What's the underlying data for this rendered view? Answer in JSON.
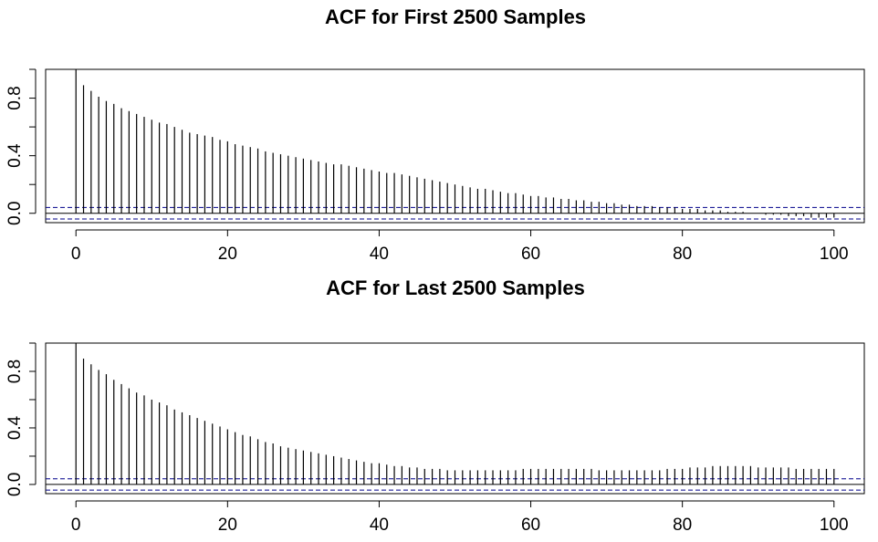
{
  "chart_data": [
    {
      "type": "bar",
      "title": "ACF for First 2500 Samples",
      "xlabel": "",
      "ylabel": "",
      "xlim": [
        -4,
        104
      ],
      "ylim": [
        -0.065,
        1.0
      ],
      "x_ticks": [
        0,
        20,
        40,
        60,
        80,
        100
      ],
      "y_ticks": [
        "0.0",
        "0.4",
        "0.8"
      ],
      "y_minor_ticks": [
        0.2,
        0.6,
        1.0
      ],
      "ci_bound": 0.04,
      "x": [
        0,
        1,
        2,
        3,
        4,
        5,
        6,
        7,
        8,
        9,
        10,
        11,
        12,
        13,
        14,
        15,
        16,
        17,
        18,
        19,
        20,
        21,
        22,
        23,
        24,
        25,
        26,
        27,
        28,
        29,
        30,
        31,
        32,
        33,
        34,
        35,
        36,
        37,
        38,
        39,
        40,
        41,
        42,
        43,
        44,
        45,
        46,
        47,
        48,
        49,
        50,
        51,
        52,
        53,
        54,
        55,
        56,
        57,
        58,
        59,
        60,
        61,
        62,
        63,
        64,
        65,
        66,
        67,
        68,
        69,
        70,
        71,
        72,
        73,
        74,
        75,
        76,
        77,
        78,
        79,
        80,
        81,
        82,
        83,
        84,
        85,
        86,
        87,
        88,
        89,
        90,
        91,
        92,
        93,
        94,
        95,
        96,
        97,
        98,
        99,
        100
      ],
      "values": [
        1.0,
        0.89,
        0.85,
        0.81,
        0.78,
        0.76,
        0.73,
        0.71,
        0.69,
        0.67,
        0.65,
        0.63,
        0.62,
        0.6,
        0.58,
        0.56,
        0.55,
        0.54,
        0.53,
        0.51,
        0.5,
        0.48,
        0.47,
        0.46,
        0.45,
        0.43,
        0.42,
        0.41,
        0.4,
        0.39,
        0.38,
        0.37,
        0.36,
        0.35,
        0.34,
        0.34,
        0.33,
        0.32,
        0.31,
        0.3,
        0.29,
        0.28,
        0.28,
        0.27,
        0.26,
        0.25,
        0.24,
        0.23,
        0.22,
        0.21,
        0.2,
        0.19,
        0.18,
        0.17,
        0.17,
        0.16,
        0.15,
        0.14,
        0.14,
        0.13,
        0.12,
        0.12,
        0.11,
        0.11,
        0.1,
        0.1,
        0.09,
        0.09,
        0.08,
        0.08,
        0.07,
        0.07,
        0.06,
        0.06,
        0.05,
        0.05,
        0.05,
        0.04,
        0.04,
        0.04,
        0.03,
        0.03,
        0.03,
        0.02,
        0.02,
        0.02,
        0.01,
        0.01,
        0.01,
        0.0,
        0.0,
        -0.01,
        -0.01,
        -0.01,
        -0.02,
        -0.02,
        -0.02,
        -0.03,
        -0.03,
        -0.03,
        -0.03
      ],
      "colors": {
        "bars": "#000000",
        "ci": "#00008b",
        "zero": "#000000"
      }
    },
    {
      "type": "bar",
      "title": "ACF for Last 2500 Samples",
      "xlabel": "",
      "ylabel": "",
      "xlim": [
        -4,
        104
      ],
      "ylim": [
        -0.065,
        1.0
      ],
      "x_ticks": [
        0,
        20,
        40,
        60,
        80,
        100
      ],
      "y_ticks": [
        "0.0",
        "0.4",
        "0.8"
      ],
      "y_minor_ticks": [
        0.2,
        0.6,
        1.0
      ],
      "ci_bound": 0.04,
      "x": [
        0,
        1,
        2,
        3,
        4,
        5,
        6,
        7,
        8,
        9,
        10,
        11,
        12,
        13,
        14,
        15,
        16,
        17,
        18,
        19,
        20,
        21,
        22,
        23,
        24,
        25,
        26,
        27,
        28,
        29,
        30,
        31,
        32,
        33,
        34,
        35,
        36,
        37,
        38,
        39,
        40,
        41,
        42,
        43,
        44,
        45,
        46,
        47,
        48,
        49,
        50,
        51,
        52,
        53,
        54,
        55,
        56,
        57,
        58,
        59,
        60,
        61,
        62,
        63,
        64,
        65,
        66,
        67,
        68,
        69,
        70,
        71,
        72,
        73,
        74,
        75,
        76,
        77,
        78,
        79,
        80,
        81,
        82,
        83,
        84,
        85,
        86,
        87,
        88,
        89,
        90,
        91,
        92,
        93,
        94,
        95,
        96,
        97,
        98,
        99,
        100
      ],
      "values": [
        1.0,
        0.89,
        0.85,
        0.81,
        0.78,
        0.74,
        0.71,
        0.68,
        0.65,
        0.63,
        0.6,
        0.58,
        0.56,
        0.53,
        0.51,
        0.49,
        0.47,
        0.45,
        0.43,
        0.41,
        0.39,
        0.37,
        0.35,
        0.34,
        0.32,
        0.3,
        0.29,
        0.27,
        0.26,
        0.25,
        0.24,
        0.23,
        0.22,
        0.21,
        0.2,
        0.19,
        0.18,
        0.17,
        0.16,
        0.15,
        0.15,
        0.14,
        0.13,
        0.13,
        0.12,
        0.12,
        0.11,
        0.11,
        0.11,
        0.1,
        0.1,
        0.1,
        0.1,
        0.1,
        0.1,
        0.1,
        0.1,
        0.1,
        0.1,
        0.11,
        0.11,
        0.11,
        0.11,
        0.11,
        0.11,
        0.11,
        0.11,
        0.11,
        0.11,
        0.1,
        0.1,
        0.1,
        0.1,
        0.1,
        0.1,
        0.1,
        0.1,
        0.1,
        0.11,
        0.11,
        0.11,
        0.12,
        0.12,
        0.12,
        0.13,
        0.13,
        0.13,
        0.13,
        0.13,
        0.13,
        0.12,
        0.12,
        0.12,
        0.12,
        0.12,
        0.11,
        0.11,
        0.11,
        0.11,
        0.11,
        0.11
      ],
      "colors": {
        "bars": "#000000",
        "ci": "#00008b",
        "zero": "#000000"
      }
    }
  ]
}
